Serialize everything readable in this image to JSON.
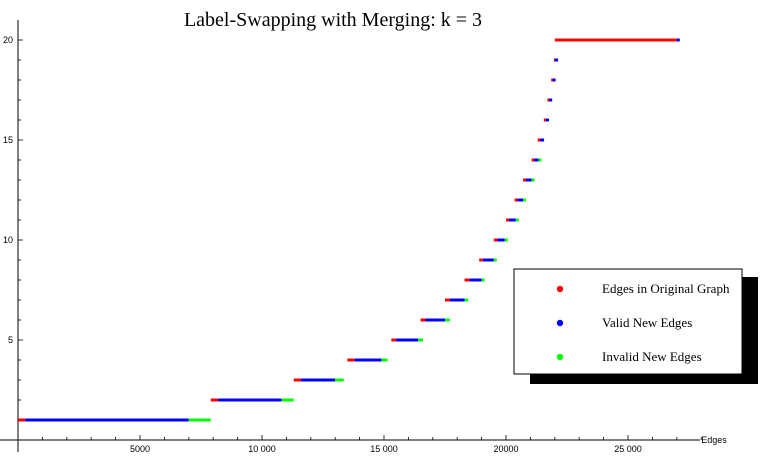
{
  "chart_data": {
    "type": "scatter",
    "title": "Label-Swapping with Merging: k = 3",
    "xlabel": "Edges",
    "ylabel": "",
    "xlim": [
      0,
      30000
    ],
    "ylim": [
      0,
      21
    ],
    "x_ticks": [
      {
        "value": 5000,
        "label": "5000"
      },
      {
        "value": 10000,
        "label": "10 000"
      },
      {
        "value": 15000,
        "label": "15 000"
      },
      {
        "value": 20000,
        "label": "20000"
      },
      {
        "value": 25000,
        "label": "25 000"
      }
    ],
    "y_ticks": [
      {
        "value": 5,
        "label": "5"
      },
      {
        "value": 10,
        "label": "10"
      },
      {
        "value": 15,
        "label": "15"
      },
      {
        "value": 20,
        "label": "20"
      }
    ],
    "legend": {
      "position": "right",
      "entries": [
        {
          "name": "Edges in Original Graph",
          "color": "#ff0000"
        },
        {
          "name": "Valid New Edges",
          "color": "#0000ff"
        },
        {
          "name": "Invalid New Edges",
          "color": "#00ff00"
        }
      ]
    },
    "series": [
      {
        "name": "Edges in Original Graph",
        "color": "#ff0000",
        "ranges": [
          {
            "y": 1,
            "x_start": 0,
            "x_end": 300
          },
          {
            "y": 2,
            "x_start": 7900,
            "x_end": 8200
          },
          {
            "y": 3,
            "x_start": 11300,
            "x_end": 11600
          },
          {
            "y": 4,
            "x_start": 13500,
            "x_end": 13800
          },
          {
            "y": 5,
            "x_start": 15300,
            "x_end": 15500
          },
          {
            "y": 6,
            "x_start": 16500,
            "x_end": 16700
          },
          {
            "y": 7,
            "x_start": 17500,
            "x_end": 17700
          },
          {
            "y": 8,
            "x_start": 18300,
            "x_end": 18500
          },
          {
            "y": 9,
            "x_start": 18900,
            "x_end": 19050
          },
          {
            "y": 10,
            "x_start": 19500,
            "x_end": 19650
          },
          {
            "y": 11,
            "x_start": 20000,
            "x_end": 20120
          },
          {
            "y": 12,
            "x_start": 20350,
            "x_end": 20470
          },
          {
            "y": 13,
            "x_start": 20700,
            "x_end": 20820
          },
          {
            "y": 14,
            "x_start": 21050,
            "x_end": 21150
          },
          {
            "y": 15,
            "x_start": 21300,
            "x_end": 21400
          },
          {
            "y": 16,
            "x_start": 21550,
            "x_end": 21630
          },
          {
            "y": 17,
            "x_start": 21700,
            "x_end": 21770
          },
          {
            "y": 18,
            "x_start": 21850,
            "x_end": 21910
          },
          {
            "y": 19,
            "x_start": 21960,
            "x_end": 22010
          },
          {
            "y": 20,
            "x_start": 22000,
            "x_end": 27000
          }
        ]
      },
      {
        "name": "Valid New Edges",
        "color": "#0000ff",
        "ranges": [
          {
            "y": 1,
            "x_start": 300,
            "x_end": 7000
          },
          {
            "y": 2,
            "x_start": 8200,
            "x_end": 10800
          },
          {
            "y": 3,
            "x_start": 11600,
            "x_end": 13000
          },
          {
            "y": 4,
            "x_start": 13800,
            "x_end": 14900
          },
          {
            "y": 5,
            "x_start": 15500,
            "x_end": 16400
          },
          {
            "y": 6,
            "x_start": 16700,
            "x_end": 17500
          },
          {
            "y": 7,
            "x_start": 17700,
            "x_end": 18300
          },
          {
            "y": 8,
            "x_start": 18500,
            "x_end": 19000
          },
          {
            "y": 9,
            "x_start": 19050,
            "x_end": 19500
          },
          {
            "y": 10,
            "x_start": 19650,
            "x_end": 19950
          },
          {
            "y": 11,
            "x_start": 20120,
            "x_end": 20400
          },
          {
            "y": 12,
            "x_start": 20470,
            "x_end": 20700
          },
          {
            "y": 13,
            "x_start": 20820,
            "x_end": 21050
          },
          {
            "y": 14,
            "x_start": 21150,
            "x_end": 21330
          },
          {
            "y": 15,
            "x_start": 21400,
            "x_end": 21560
          },
          {
            "y": 16,
            "x_start": 21630,
            "x_end": 21760
          },
          {
            "y": 17,
            "x_start": 21770,
            "x_end": 21880
          },
          {
            "y": 18,
            "x_start": 21910,
            "x_end": 21990
          },
          {
            "y": 19,
            "x_start": 22010,
            "x_end": 22080
          },
          {
            "y": 20,
            "x_start": 27000,
            "x_end": 27100
          }
        ]
      },
      {
        "name": "Invalid New Edges",
        "color": "#00ff00",
        "ranges": [
          {
            "y": 1,
            "x_start": 7000,
            "x_end": 7900
          },
          {
            "y": 2,
            "x_start": 10800,
            "x_end": 11300
          },
          {
            "y": 3,
            "x_start": 13000,
            "x_end": 13350
          },
          {
            "y": 4,
            "x_start": 14900,
            "x_end": 15150
          },
          {
            "y": 5,
            "x_start": 16400,
            "x_end": 16600
          },
          {
            "y": 6,
            "x_start": 17500,
            "x_end": 17700
          },
          {
            "y": 7,
            "x_start": 18300,
            "x_end": 18450
          },
          {
            "y": 8,
            "x_start": 19000,
            "x_end": 19100
          },
          {
            "y": 9,
            "x_start": 19500,
            "x_end": 19600
          },
          {
            "y": 10,
            "x_start": 19950,
            "x_end": 20050
          },
          {
            "y": 11,
            "x_start": 20400,
            "x_end": 20480
          },
          {
            "y": 12,
            "x_start": 20700,
            "x_end": 20780
          },
          {
            "y": 13,
            "x_start": 21050,
            "x_end": 21120
          },
          {
            "y": 14,
            "x_start": 21330,
            "x_end": 21400
          }
        ]
      }
    ]
  }
}
